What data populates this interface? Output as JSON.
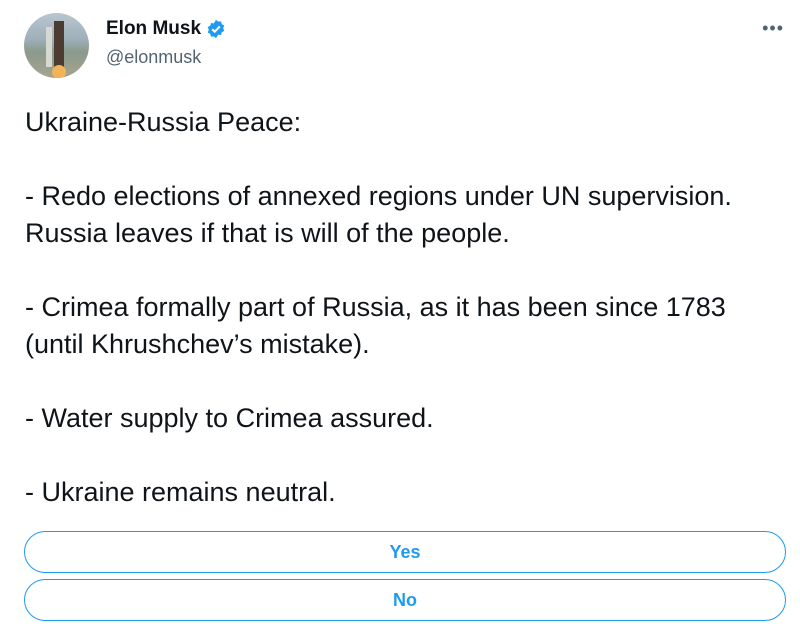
{
  "author": {
    "name": "Elon Musk",
    "handle": "@elonmusk",
    "verified": true,
    "verified_color": "#1d9bf0"
  },
  "menu_icon": "more-horizontal-icon",
  "menu_label": "•••",
  "tweet": {
    "paragraphs": [
      "Ukraine-Russia Peace:",
      "- Redo elections of annexed regions under UN supervision. Russia leaves if that is will of the people.",
      "- Crimea formally part of Russia, as it has been since 1783 (until Khrushchev’s mistake).",
      "- Water supply to Crimea assured.",
      "- Ukraine remains neutral."
    ]
  },
  "poll": {
    "options": [
      "Yes",
      "No"
    ],
    "accent": "#1d9bf0"
  }
}
